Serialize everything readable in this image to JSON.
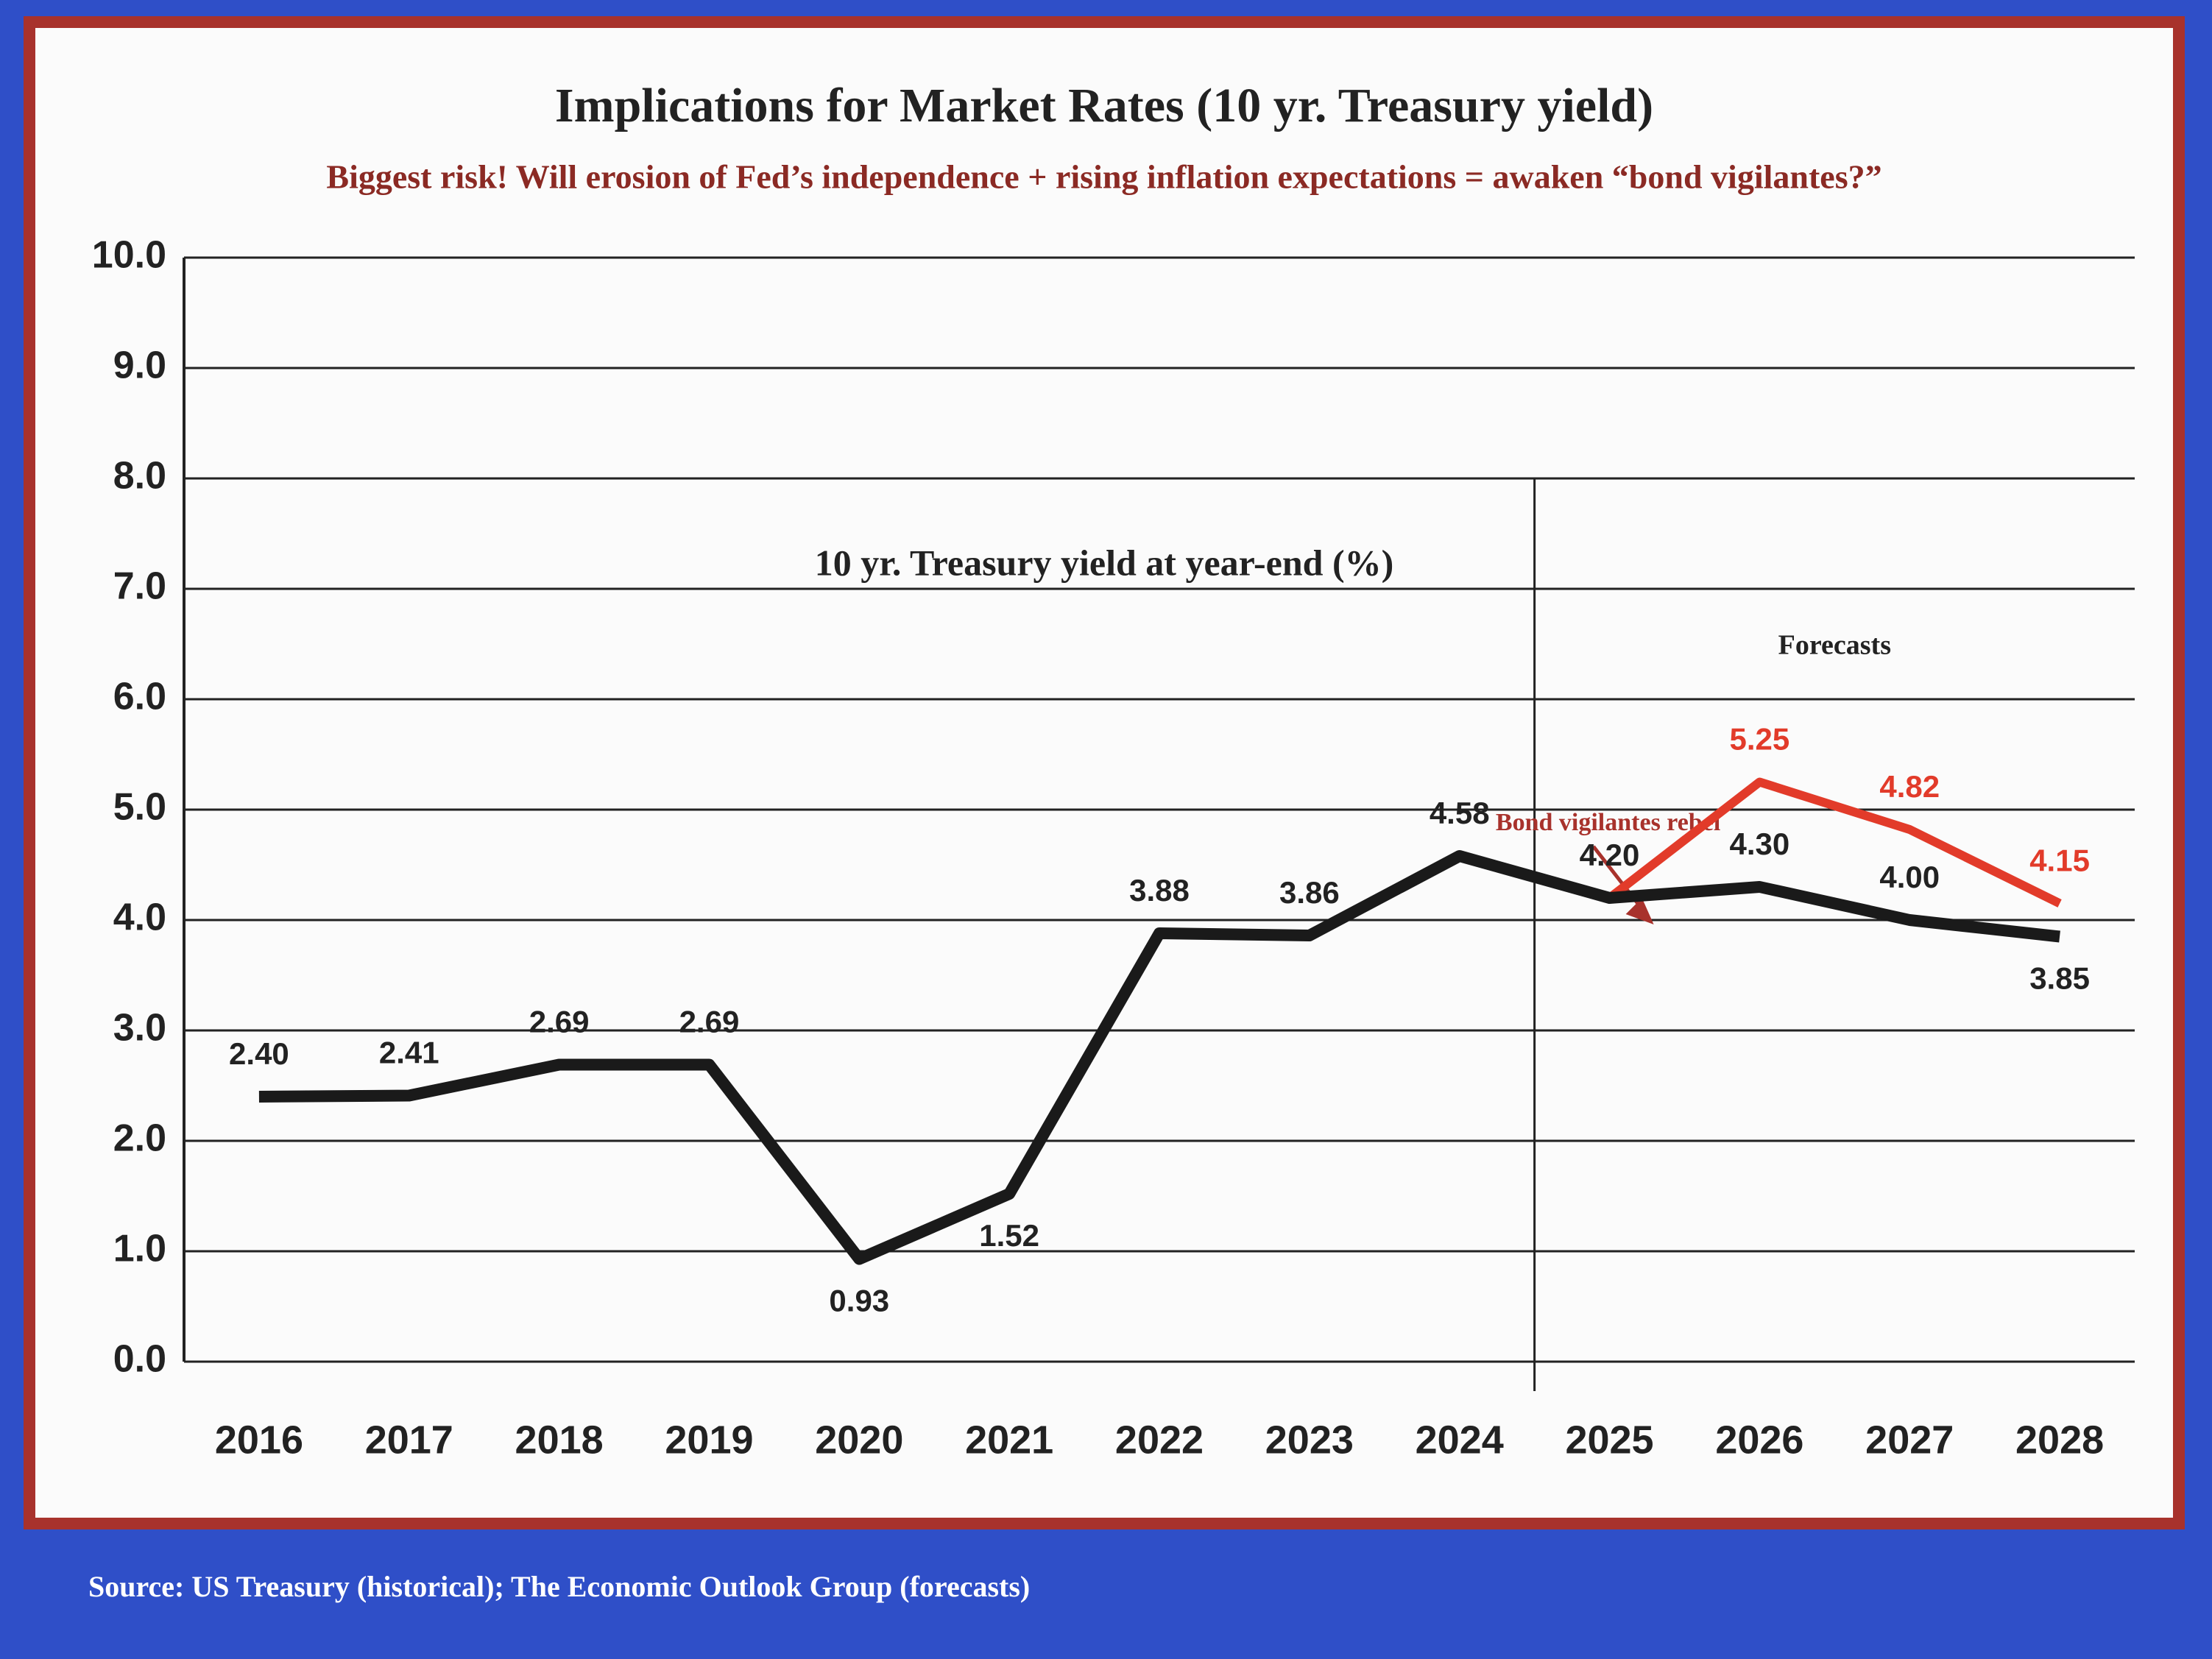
{
  "chart_data": {
    "type": "line",
    "title": "Implications for Market Rates (10 yr. Treasury yield)",
    "subtitle": "Biggest risk!  Will erosion of Fed’s independence + rising inflation expectations = awaken “bond vigilantes?”",
    "axis_label": "10 yr. Treasury yield at year-end  (%)",
    "annotations": [
      "Forecasts",
      "Bond vigilantes rebel"
    ],
    "source": "Source: US Treasury (historical); The Economic Outlook Group (forecasts)",
    "categories": [
      "2016",
      "2017",
      "2018",
      "2019",
      "2020",
      "2021",
      "2022",
      "2023",
      "2024",
      "2025",
      "2026",
      "2027",
      "2028"
    ],
    "series": [
      {
        "color": "#1a1a1a",
        "values": [
          2.4,
          2.41,
          2.69,
          2.69,
          0.93,
          1.52,
          3.88,
          3.86,
          4.58,
          4.2,
          4.3,
          4.0,
          3.85
        ],
        "value_labels": [
          "2.40",
          "2.41",
          "2.69",
          "2.69",
          "0.93",
          "1.52",
          "3.88",
          "3.86",
          "4.58",
          "4.20",
          "4.30",
          "4.00",
          "3.85"
        ]
      },
      {
        "color": "#e23b2a",
        "values": [
          null,
          null,
          null,
          null,
          null,
          null,
          null,
          null,
          null,
          4.2,
          5.25,
          4.82,
          4.15
        ],
        "value_labels": [
          null,
          null,
          null,
          null,
          null,
          null,
          null,
          null,
          null,
          null,
          "5.25",
          "4.82",
          "4.15"
        ]
      }
    ],
    "ylim": [
      0,
      10
    ],
    "yticks": [
      {
        "value": 0,
        "label": "0.0"
      },
      {
        "value": 1,
        "label": "1.0"
      },
      {
        "value": 2,
        "label": "2.0"
      },
      {
        "value": 3,
        "label": "3.0"
      },
      {
        "value": 4,
        "label": "4.0"
      },
      {
        "value": 5,
        "label": "5.0"
      },
      {
        "value": 6,
        "label": "6.0"
      },
      {
        "value": 7,
        "label": "7.0"
      },
      {
        "value": 8,
        "label": "8.0"
      },
      {
        "value": 9,
        "label": "9.0"
      },
      {
        "value": 10,
        "label": "10.0"
      }
    ],
    "grid": true
  }
}
